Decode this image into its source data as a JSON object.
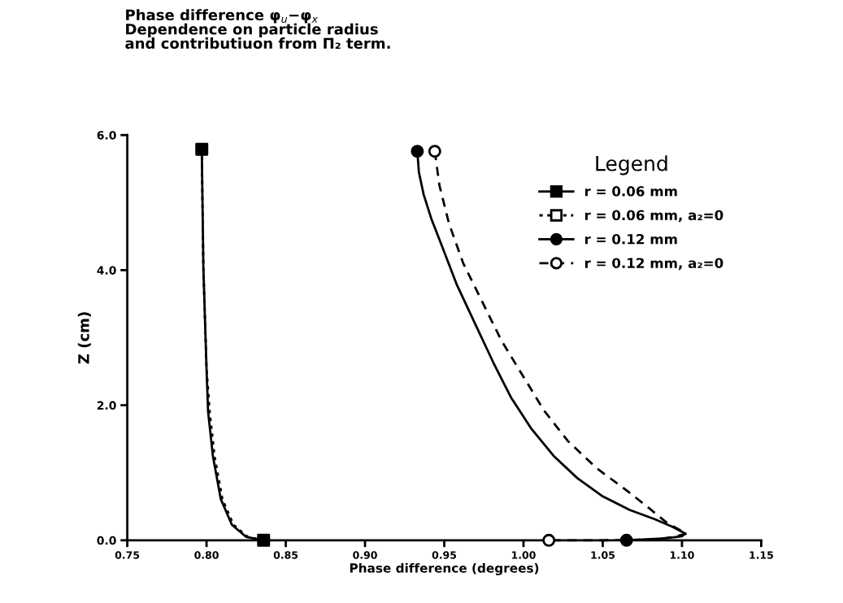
{
  "chart_data": {
    "type": "line",
    "title": "Phase difference φ$_{u}$−φ$_{x}$\nDependence on particle radius\nand contributiuon from Π₂ term.",
    "xlabel": "Phase difference (degrees)",
    "ylabel": "Z (cm)",
    "legend_title": "Legend",
    "xlim": [
      0.75,
      1.15
    ],
    "ylim": [
      0,
      6.0
    ],
    "xticks": [
      {
        "value": 0.75,
        "label": "0.75"
      },
      {
        "value": 0.8,
        "label": "0.80"
      },
      {
        "value": 0.85,
        "label": "0.85"
      },
      {
        "value": 0.9,
        "label": "0.90"
      },
      {
        "value": 0.95,
        "label": "0.95"
      },
      {
        "value": 1.0,
        "label": "1.00"
      },
      {
        "value": 1.05,
        "label": "1.05"
      },
      {
        "value": 1.1,
        "label": "1.10"
      },
      {
        "value": 1.15,
        "label": "1.15"
      }
    ],
    "yticks": [
      {
        "value": 0,
        "label": "0.0"
      },
      {
        "value": 2.0,
        "label": "2.0"
      },
      {
        "value": 4.0,
        "label": "4.0"
      },
      {
        "value": 6.0,
        "label": "6.0"
      }
    ],
    "grid": false,
    "legend": "top right",
    "series": [
      {
        "name": "r = 0.06 mm",
        "color": "#000000",
        "line_style": "solid",
        "x": [
          0.797,
          0.798,
          0.8,
          0.801,
          0.804,
          0.809,
          0.816,
          0.825,
          0.836
        ],
        "values": [
          5.79,
          4.04,
          2.54,
          1.9,
          1.25,
          0.61,
          0.23,
          0.05,
          0
        ]
      },
      {
        "name": "r = 0.06 mm, a₂=0",
        "color": "#000000",
        "line_style": "dotted",
        "x": [
          0.797,
          0.798,
          0.8,
          0.802,
          0.805,
          0.81,
          0.817,
          0.826,
          0.836
        ],
        "values": [
          5.79,
          4.04,
          2.54,
          1.9,
          1.25,
          0.61,
          0.23,
          0.05,
          0
        ]
      },
      {
        "name": "r = 0.12 mm",
        "color": "#000000",
        "line_style": "solid",
        "x": [
          0.933,
          0.934,
          0.937,
          0.942,
          0.948,
          0.958,
          0.97,
          0.981,
          0.992,
          1.005,
          1.019,
          1.034,
          1.05,
          1.067,
          1.083,
          1.094,
          1.102,
          1.1,
          1.09,
          1.065
        ],
        "values": [
          5.76,
          5.45,
          5.12,
          4.75,
          4.39,
          3.78,
          3.18,
          2.63,
          2.12,
          1.65,
          1.25,
          0.92,
          0.65,
          0.45,
          0.31,
          0.2,
          0.1,
          0.06,
          0.03,
          0
        ]
      },
      {
        "name": "r = 0.12 mm, a₂=0",
        "color": "#000000",
        "line_style": "dashed",
        "x": [
          0.944,
          0.947,
          0.953,
          0.962,
          0.974,
          0.986,
          1.0,
          1.013,
          1.028,
          1.046,
          1.065,
          1.079,
          1.091,
          1.098,
          1.103,
          1.095,
          1.083,
          1.05,
          1.016
        ],
        "values": [
          5.76,
          5.25,
          4.69,
          4.1,
          3.53,
          2.96,
          2.42,
          1.92,
          1.47,
          1.07,
          0.74,
          0.48,
          0.25,
          0.16,
          0.1,
          0.05,
          0.01,
          0,
          0
        ]
      },
      {
        "type": "scatter",
        "color": "#000000",
        "marker": "square",
        "x": [
          0.797,
          0.836
        ],
        "values": [
          5.79,
          0
        ]
      },
      {
        "type": "scatter",
        "color": "#ffffff",
        "marker": "square"
      },
      {
        "type": "scatter",
        "color": "#000000",
        "marker": "circle",
        "x": [
          0.933,
          1.065
        ],
        "values": [
          5.76,
          0
        ]
      },
      {
        "type": "scatter",
        "color": "#ffffff",
        "marker": "circle",
        "x": [
          0.944,
          1.016
        ],
        "values": [
          5.76,
          0
        ]
      }
    ]
  }
}
